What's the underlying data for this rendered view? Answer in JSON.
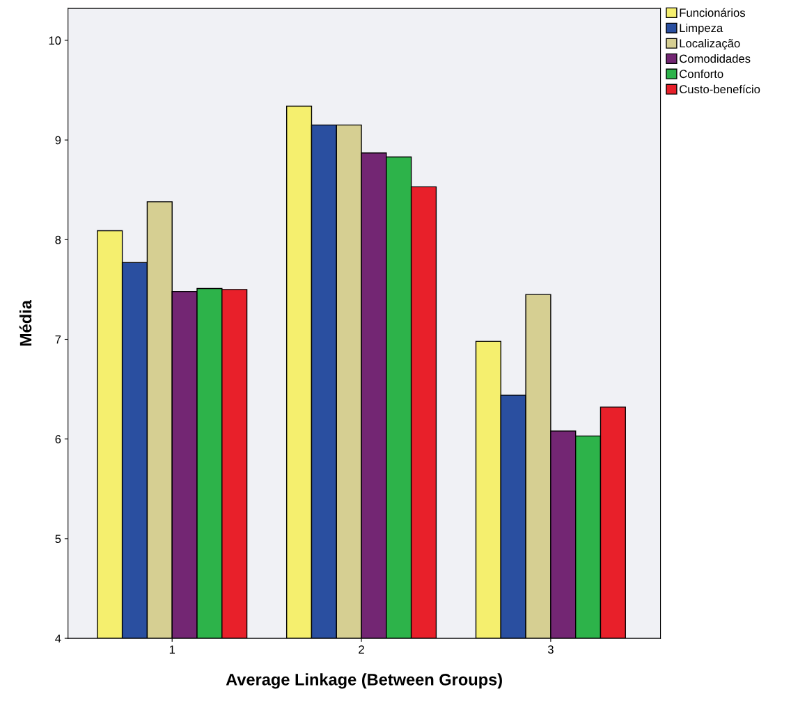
{
  "chart_data": {
    "type": "bar",
    "xlabel": "Average Linkage (Between Groups)",
    "ylabel": "Média",
    "categories": [
      "1",
      "2",
      "3"
    ],
    "series": [
      {
        "name": "Funcionários",
        "color": "#f5ef6e",
        "values": [
          8.09,
          9.34,
          6.98
        ]
      },
      {
        "name": "Limpeza",
        "color": "#2a4fa0",
        "values": [
          7.77,
          9.15,
          6.44
        ]
      },
      {
        "name": "Localização",
        "color": "#d6cf92",
        "values": [
          8.38,
          9.15,
          7.45
        ]
      },
      {
        "name": "Comodidades",
        "color": "#732673",
        "values": [
          7.48,
          8.87,
          6.08
        ]
      },
      {
        "name": "Conforto",
        "color": "#2db34a",
        "values": [
          7.51,
          8.83,
          6.03
        ]
      },
      {
        "name": "Custo-benefício",
        "color": "#e8202a",
        "values": [
          7.5,
          8.53,
          6.32
        ]
      }
    ],
    "ylim": [
      4,
      10.32
    ],
    "yticks": [
      4,
      5,
      6,
      7,
      8,
      9,
      10
    ],
    "grid": false,
    "legend": "top right"
  }
}
